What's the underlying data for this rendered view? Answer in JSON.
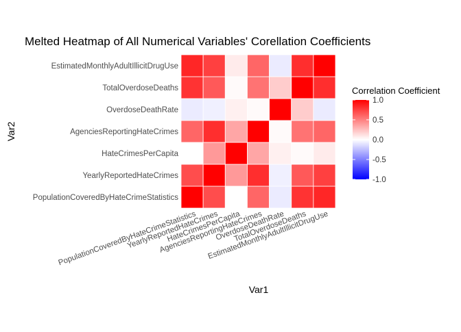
{
  "chart_data": {
    "type": "heatmap",
    "title": "Melted Heatmap of All Numerical Variables' Corellation Coefficients",
    "xlabel": "Var1",
    "ylabel": "Var2",
    "x_categories": [
      "PopulationCoveredByHateCrimeStatistics",
      "YearlyReportedHateCrimes",
      "HateCrimesPerCapita",
      "AgenciesReportingHateCrimes",
      "OverdoseDeathRate",
      "TotalOverdoseDeaths",
      "EstimatedMonthlyAdultIllicitDrugUse"
    ],
    "y_categories": [
      "PopulationCoveredByHateCrimeStatistics",
      "YearlyReportedHateCrimes",
      "HateCrimesPerCapita",
      "AgenciesReportingHateCrimes",
      "OverdoseDeathRate",
      "TotalOverdoseDeaths",
      "EstimatedMonthlyAdultIllicitDrugUse"
    ],
    "values": [
      [
        1.0,
        0.7,
        0.0,
        0.6,
        -0.08,
        0.8,
        0.85
      ],
      [
        0.7,
        1.0,
        0.4,
        0.82,
        -0.06,
        0.65,
        0.75
      ],
      [
        0.0,
        0.4,
        1.0,
        0.35,
        0.06,
        0.02,
        0.08
      ],
      [
        0.6,
        0.82,
        0.35,
        1.0,
        0.02,
        0.55,
        0.6
      ],
      [
        -0.08,
        -0.06,
        0.06,
        0.02,
        1.0,
        0.2,
        -0.08
      ],
      [
        0.8,
        0.65,
        0.02,
        0.55,
        0.2,
        1.0,
        0.82
      ],
      [
        0.85,
        0.75,
        0.08,
        0.6,
        -0.08,
        0.82,
        1.0
      ]
    ],
    "legend": {
      "title": "Correlation Coefficient",
      "ticks": [
        1.0,
        0.5,
        0.0,
        -0.5,
        -1.0
      ],
      "tick_labels": [
        "1.0",
        "0.5",
        "0.0",
        "-0.5",
        "-1.0"
      ],
      "range": [
        -1,
        1
      ],
      "placement": "right"
    },
    "colors": {
      "low": "#0000ff",
      "mid": "#ffffff",
      "high": "#ff0000"
    },
    "grid": false
  }
}
